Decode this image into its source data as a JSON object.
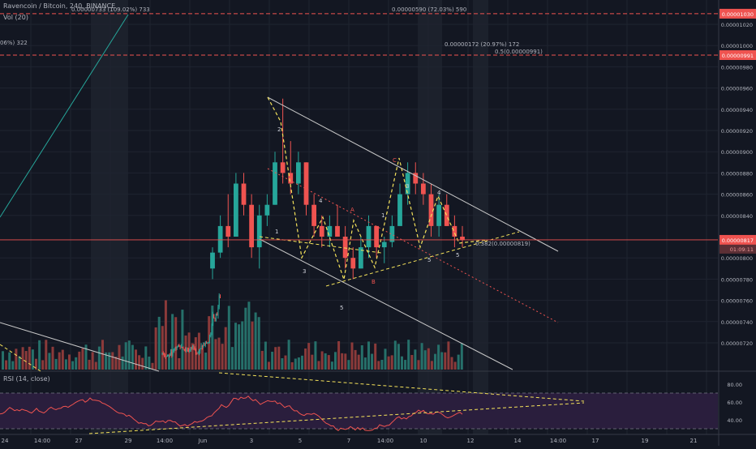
{
  "header": {
    "symbol": "Ravencoin / Bitcoin, 240, BINANCE",
    "volume_label": "Vol (20)",
    "rsi_label": "RSI (14, close)"
  },
  "colors": {
    "background": "#131722",
    "up": "#26a69a",
    "down": "#ef5350",
    "vol_up": "#26706a",
    "vol_down": "#8b3a3a",
    "channel": "#c8c8c8",
    "pattern": "#f5e35b",
    "wave_label": "#d1d4dc",
    "abc_label": "#ef5350",
    "fib_line": "#ef5350",
    "rsi_line": "#ef5350",
    "rsi_band": "#2a1e3d",
    "axis_text": "#b2b5be"
  },
  "chart_data": [
    {
      "type": "candlestick",
      "title": "Ravencoin / Bitcoin, 240, BINANCE",
      "price_axis": {
        "ylim": [
          7e-06,
          1.04e-06
        ],
        "tick_labels": [
          "0.00001020",
          "0.00001000",
          "0.00000980",
          "0.00000960",
          "0.00000940",
          "0.00000920",
          "0.00000900",
          "0.00000880",
          "0.00000860",
          "0.00000840",
          "0.00000800",
          "0.00000780",
          "0.00000760",
          "0.00000740",
          "0.00000720"
        ],
        "tick_values": [
          1.02e-05,
          1e-05,
          9.8e-06,
          9.6e-06,
          9.4e-06,
          9.2e-06,
          9e-06,
          8.8e-06,
          8.6e-06,
          8.4e-06,
          8e-06,
          7.8e-06,
          7.6e-06,
          7.4e-06,
          7.2e-06
        ],
        "last_price_label": "0.00000817",
        "last_price_value": 8.17e-06,
        "countdown_label": "01:09:11",
        "top_marker_label": "0.00001030",
        "top_marker_value": 1.03e-05,
        "fib_marker_label": "0.00000991",
        "fib_marker_value": 9.91e-06
      },
      "time_axis": {
        "tick_labels": [
          "24",
          "14:00",
          "27",
          "29",
          "14:00",
          "Jun",
          "3",
          "5",
          "7",
          "14:00",
          "10",
          "12",
          "14",
          "14:00",
          "17",
          "19",
          "21"
        ]
      },
      "candles": [
        [
          7.9e-06,
          8.1e-06,
          7.8e-06,
          8.05e-06
        ],
        [
          8.05e-06,
          8.4e-06,
          8e-06,
          8.3e-06
        ],
        [
          8.3e-06,
          8.6e-06,
          8.1e-06,
          8.2e-06
        ],
        [
          8.2e-06,
          8.8e-06,
          8.2e-06,
          8.7e-06
        ],
        [
          8.7e-06,
          8.8e-06,
          8.4e-06,
          8.5e-06
        ],
        [
          8.5e-06,
          8.6e-06,
          8e-06,
          8.1e-06
        ],
        [
          8.1e-06,
          8.5e-06,
          7.9e-06,
          8.4e-06
        ],
        [
          8.4e-06,
          8.6e-06,
          8.3e-06,
          8.5e-06
        ],
        [
          8.5e-06,
          9e-06,
          8.5e-06,
          8.9e-06
        ],
        [
          8.9e-06,
          9.5e-06,
          8.7e-06,
          8.8e-06
        ],
        [
          8.8e-06,
          9.1e-06,
          8.6e-06,
          8.7e-06
        ],
        [
          8.7e-06,
          9e-06,
          8.6e-06,
          8.9e-06
        ],
        [
          8.9e-06,
          8.9e-06,
          8.4e-06,
          8.5e-06
        ],
        [
          8.5e-06,
          8.6e-06,
          8.2e-06,
          8.3e-06
        ],
        [
          8.3e-06,
          8.4e-06,
          8.1e-06,
          8.2e-06
        ],
        [
          8.2e-06,
          8.4e-06,
          8.1e-06,
          8.3e-06
        ],
        [
          8.3e-06,
          8.5e-06,
          8.2e-06,
          8.2e-06
        ],
        [
          8.2e-06,
          8.3e-06,
          7.9e-06,
          8e-06
        ],
        [
          8e-06,
          8.1e-06,
          7.8e-06,
          7.9e-06
        ],
        [
          7.9e-06,
          8.2e-06,
          7.9e-06,
          8.1e-06
        ],
        [
          8.1e-06,
          8.4e-06,
          8e-06,
          8.3e-06
        ],
        [
          8.3e-06,
          8.3e-06,
          8e-06,
          8.1e-06
        ],
        [
          8.1e-06,
          8.2e-06,
          7.95e-06,
          8.15e-06
        ],
        [
          8.15e-06,
          8.4e-06,
          8.1e-06,
          8.3e-06
        ],
        [
          8.3e-06,
          8.7e-06,
          8.3e-06,
          8.6e-06
        ],
        [
          8.6e-06,
          8.9e-06,
          8.5e-06,
          8.8e-06
        ],
        [
          8.8e-06,
          8.9e-06,
          8.6e-06,
          8.7e-06
        ],
        [
          8.7e-06,
          8.8e-06,
          8.5e-06,
          8.6e-06
        ],
        [
          8.6e-06,
          8.7e-06,
          8.2e-06,
          8.3e-06
        ],
        [
          8.3e-06,
          8.6e-06,
          8.2e-06,
          8.5e-06
        ],
        [
          8.5e-06,
          8.6e-06,
          8.3e-06,
          8.3e-06
        ],
        [
          8.3e-06,
          8.4e-06,
          8.1e-06,
          8.2e-06
        ],
        [
          8.2e-06,
          8.3e-06,
          8.1e-06,
          8.17e-06
        ]
      ],
      "channel_label": "0.382(0.00000819)",
      "fib_label": "0.5(0.00000991)",
      "measure_labels": [
        "0.00000733 (109.02%) 733",
        "0.00000590 (72.03%) 590",
        "0.00000172 (20.97%) 172",
        "06%) 322"
      ],
      "wave_labels": [
        "1",
        "2",
        "3",
        "4",
        "5",
        "1",
        "3",
        "4",
        "5",
        "5"
      ],
      "abc_labels": [
        "A",
        "B",
        "C"
      ]
    },
    {
      "type": "bar",
      "title": "Vol (20)"
    },
    {
      "type": "line",
      "title": "RSI (14, close)",
      "ylim": [
        20,
        80
      ],
      "tick_labels": [
        "80.00",
        "60.00",
        "40.00"
      ],
      "tick_values": [
        80,
        60,
        40
      ],
      "band": [
        30,
        70
      ]
    }
  ]
}
